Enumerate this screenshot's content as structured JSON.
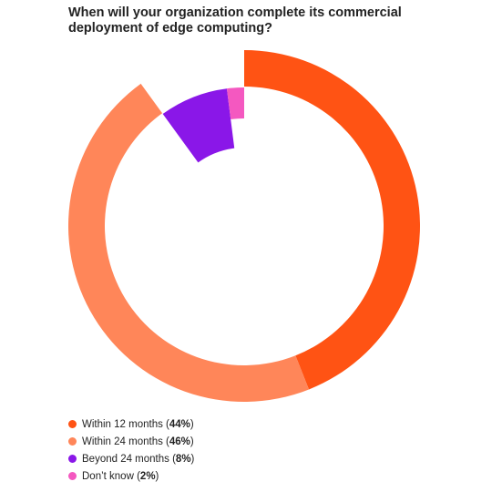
{
  "chart_data": {
    "type": "pie",
    "title": "When will your organization complete its commercial deployment of edge computing?",
    "series": [
      {
        "name": "Within 12 months",
        "value": 44,
        "label": "44%",
        "color": "#FF5314"
      },
      {
        "name": "Within 24 months",
        "value": 46,
        "label": "46%",
        "color": "#FF8659"
      },
      {
        "name": "Beyond 24 months",
        "value": 8,
        "label": "8%",
        "color": "#8A17E8"
      },
      {
        "name": "Don’t know",
        "value": 2,
        "label": "2%",
        "color": "#F458C0"
      }
    ],
    "legend_position": "bottom-left",
    "style": "radial bars (donut)"
  }
}
